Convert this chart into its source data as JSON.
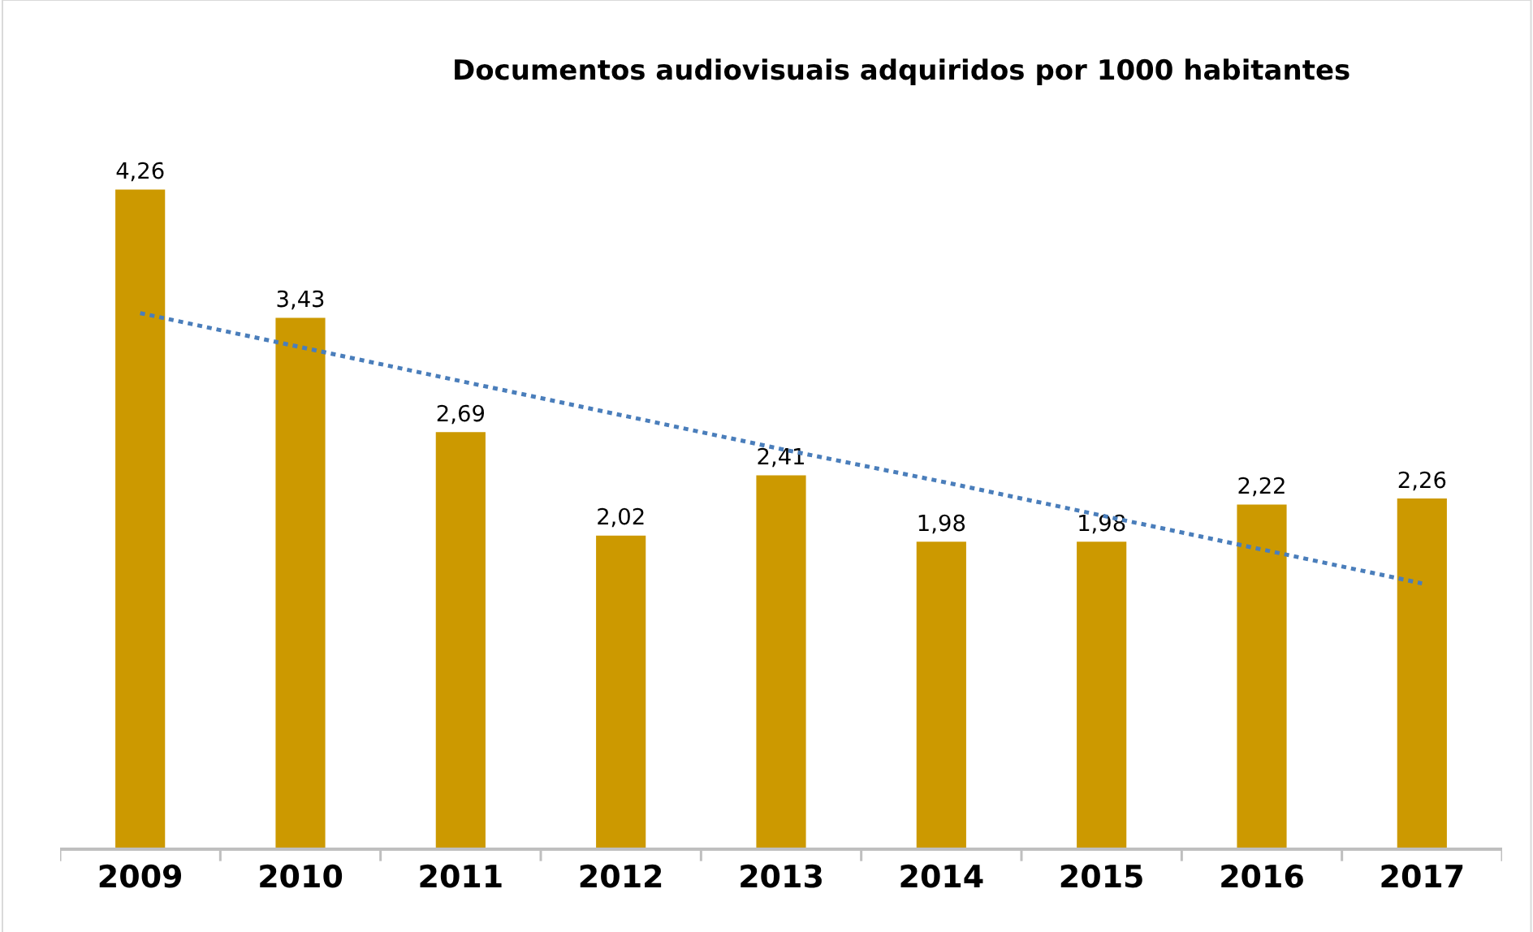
{
  "chart_data": {
    "type": "bar",
    "title": "Documentos audiovisuais adquiridos por 1000 habitantes",
    "categories": [
      "2009",
      "2010",
      "2011",
      "2012",
      "2013",
      "2014",
      "2015",
      "2016",
      "2017"
    ],
    "series": [
      {
        "color": "#cc9900",
        "values": [
          4.26,
          3.43,
          2.69,
          2.02,
          2.41,
          1.98,
          1.98,
          2.22,
          2.26
        ],
        "value_labels": [
          "4,26",
          "3,43",
          "2,69",
          "2,02",
          "2,41",
          "1,98",
          "1,98",
          "2,22",
          "2,26"
        ]
      },
      {
        "type": "line",
        "color": "#4a7ebb",
        "line_style": "dotted",
        "marker": "none",
        "values": [
          3.46,
          3.24,
          3.02,
          2.8,
          2.58,
          2.37,
          2.15,
          1.93,
          1.71
        ]
      }
    ],
    "grid": false
  }
}
